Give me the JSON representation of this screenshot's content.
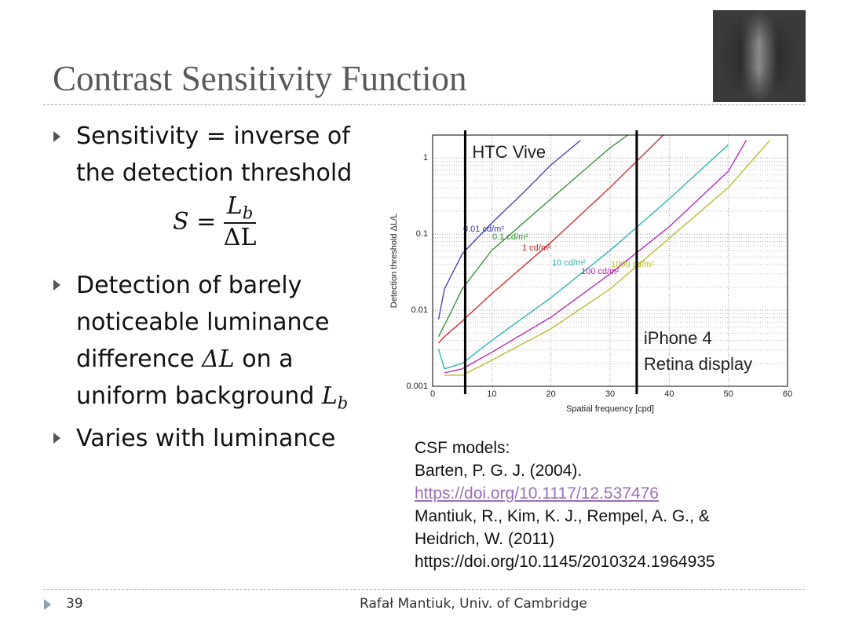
{
  "title": "Contrast Sensitivity Function",
  "bullets": [
    {
      "segments": [
        {
          "text": "Sensitivity = inverse of the detection threshold"
        }
      ],
      "formula": {
        "lhs": "S",
        "op": "=",
        "numerator": "L",
        "numerator_sub": "b",
        "denominator": "ΔL"
      }
    },
    {
      "segments": [
        {
          "text": "Detection of barely noticeable luminance difference "
        },
        {
          "text": "ΔL",
          "style": "math"
        },
        {
          "text": " on a uniform background "
        },
        {
          "text": "L",
          "style": "math"
        },
        {
          "text": "b",
          "style": "sub"
        }
      ]
    },
    {
      "segments": [
        {
          "text": "Varies with luminance"
        }
      ]
    }
  ],
  "chart_data": {
    "type": "line",
    "log_y": true,
    "grid": true,
    "minor_grid": true,
    "xlabel": "Spatial frequency [cpd]",
    "ylabel": "Detection threshold ΔL/L",
    "xlim": [
      0,
      60
    ],
    "xticks": [
      0,
      10,
      20,
      30,
      40,
      50,
      60
    ],
    "ylim": [
      0.001,
      2
    ],
    "yticks": [
      0.001,
      0.01,
      0.1,
      1
    ],
    "series": [
      {
        "name": "0.01 cd/m²",
        "color": "#3a3ab4",
        "x": [
          1,
          2,
          5,
          10,
          15,
          20,
          25
        ],
        "values": [
          0.0076,
          0.019,
          0.055,
          0.14,
          0.33,
          0.81,
          1.7
        ]
      },
      {
        "name": "0.1 cd/m²",
        "color": "#2e8b2e",
        "x": [
          1,
          3,
          5,
          10,
          20,
          30,
          33
        ],
        "values": [
          0.0045,
          0.0091,
          0.019,
          0.061,
          0.29,
          1.36,
          2
        ]
      },
      {
        "name": "1 cd/m²",
        "color": "#d42020",
        "x": [
          1,
          2,
          5,
          10,
          20,
          30,
          39
        ],
        "values": [
          0.0037,
          0.0045,
          0.0072,
          0.0165,
          0.078,
          0.41,
          2
        ]
      },
      {
        "name": "10 cd/m²",
        "color": "#1fb0b0",
        "x": [
          1,
          2,
          5,
          10,
          20,
          30,
          40,
          50
        ],
        "values": [
          0.0031,
          0.0017,
          0.002,
          0.004,
          0.0146,
          0.061,
          0.29,
          1.5
        ]
      },
      {
        "name": "100 cd/m²",
        "color": "#b420b4",
        "x": [
          2,
          5,
          10,
          20,
          30,
          40,
          50,
          53
        ],
        "values": [
          0.0015,
          0.0017,
          0.0028,
          0.0081,
          0.03,
          0.125,
          0.67,
          1.7
        ]
      },
      {
        "name": "1000 cd/m²",
        "color": "#b8b820",
        "x": [
          2,
          5,
          10,
          20,
          30,
          40,
          50,
          57
        ],
        "values": [
          0.0014,
          0.0014,
          0.0022,
          0.0057,
          0.019,
          0.088,
          0.41,
          1.7
        ]
      }
    ],
    "markers": [
      {
        "x": 5.5,
        "label": [
          "HTC Vive"
        ]
      },
      {
        "x": 34.5,
        "label": [
          "iPhone 4",
          "Retina display"
        ]
      }
    ]
  },
  "references": {
    "heading": "CSF models:",
    "lines": [
      {
        "text": "Barten, P. G. J. (2004)."
      },
      {
        "text": "https://doi.org/10.1117/12.537476",
        "link": true
      },
      {
        "text": "Mantiuk, R., Kim, K. J., Rempel, A. G., &"
      },
      {
        "text": "Heidrich, W. (2011)"
      },
      {
        "text": "https://doi.org/10.1145/2010324.1964935"
      }
    ]
  },
  "footer": {
    "page": "39",
    "author": "Rafał Mantiuk, Univ. of Cambridge"
  }
}
